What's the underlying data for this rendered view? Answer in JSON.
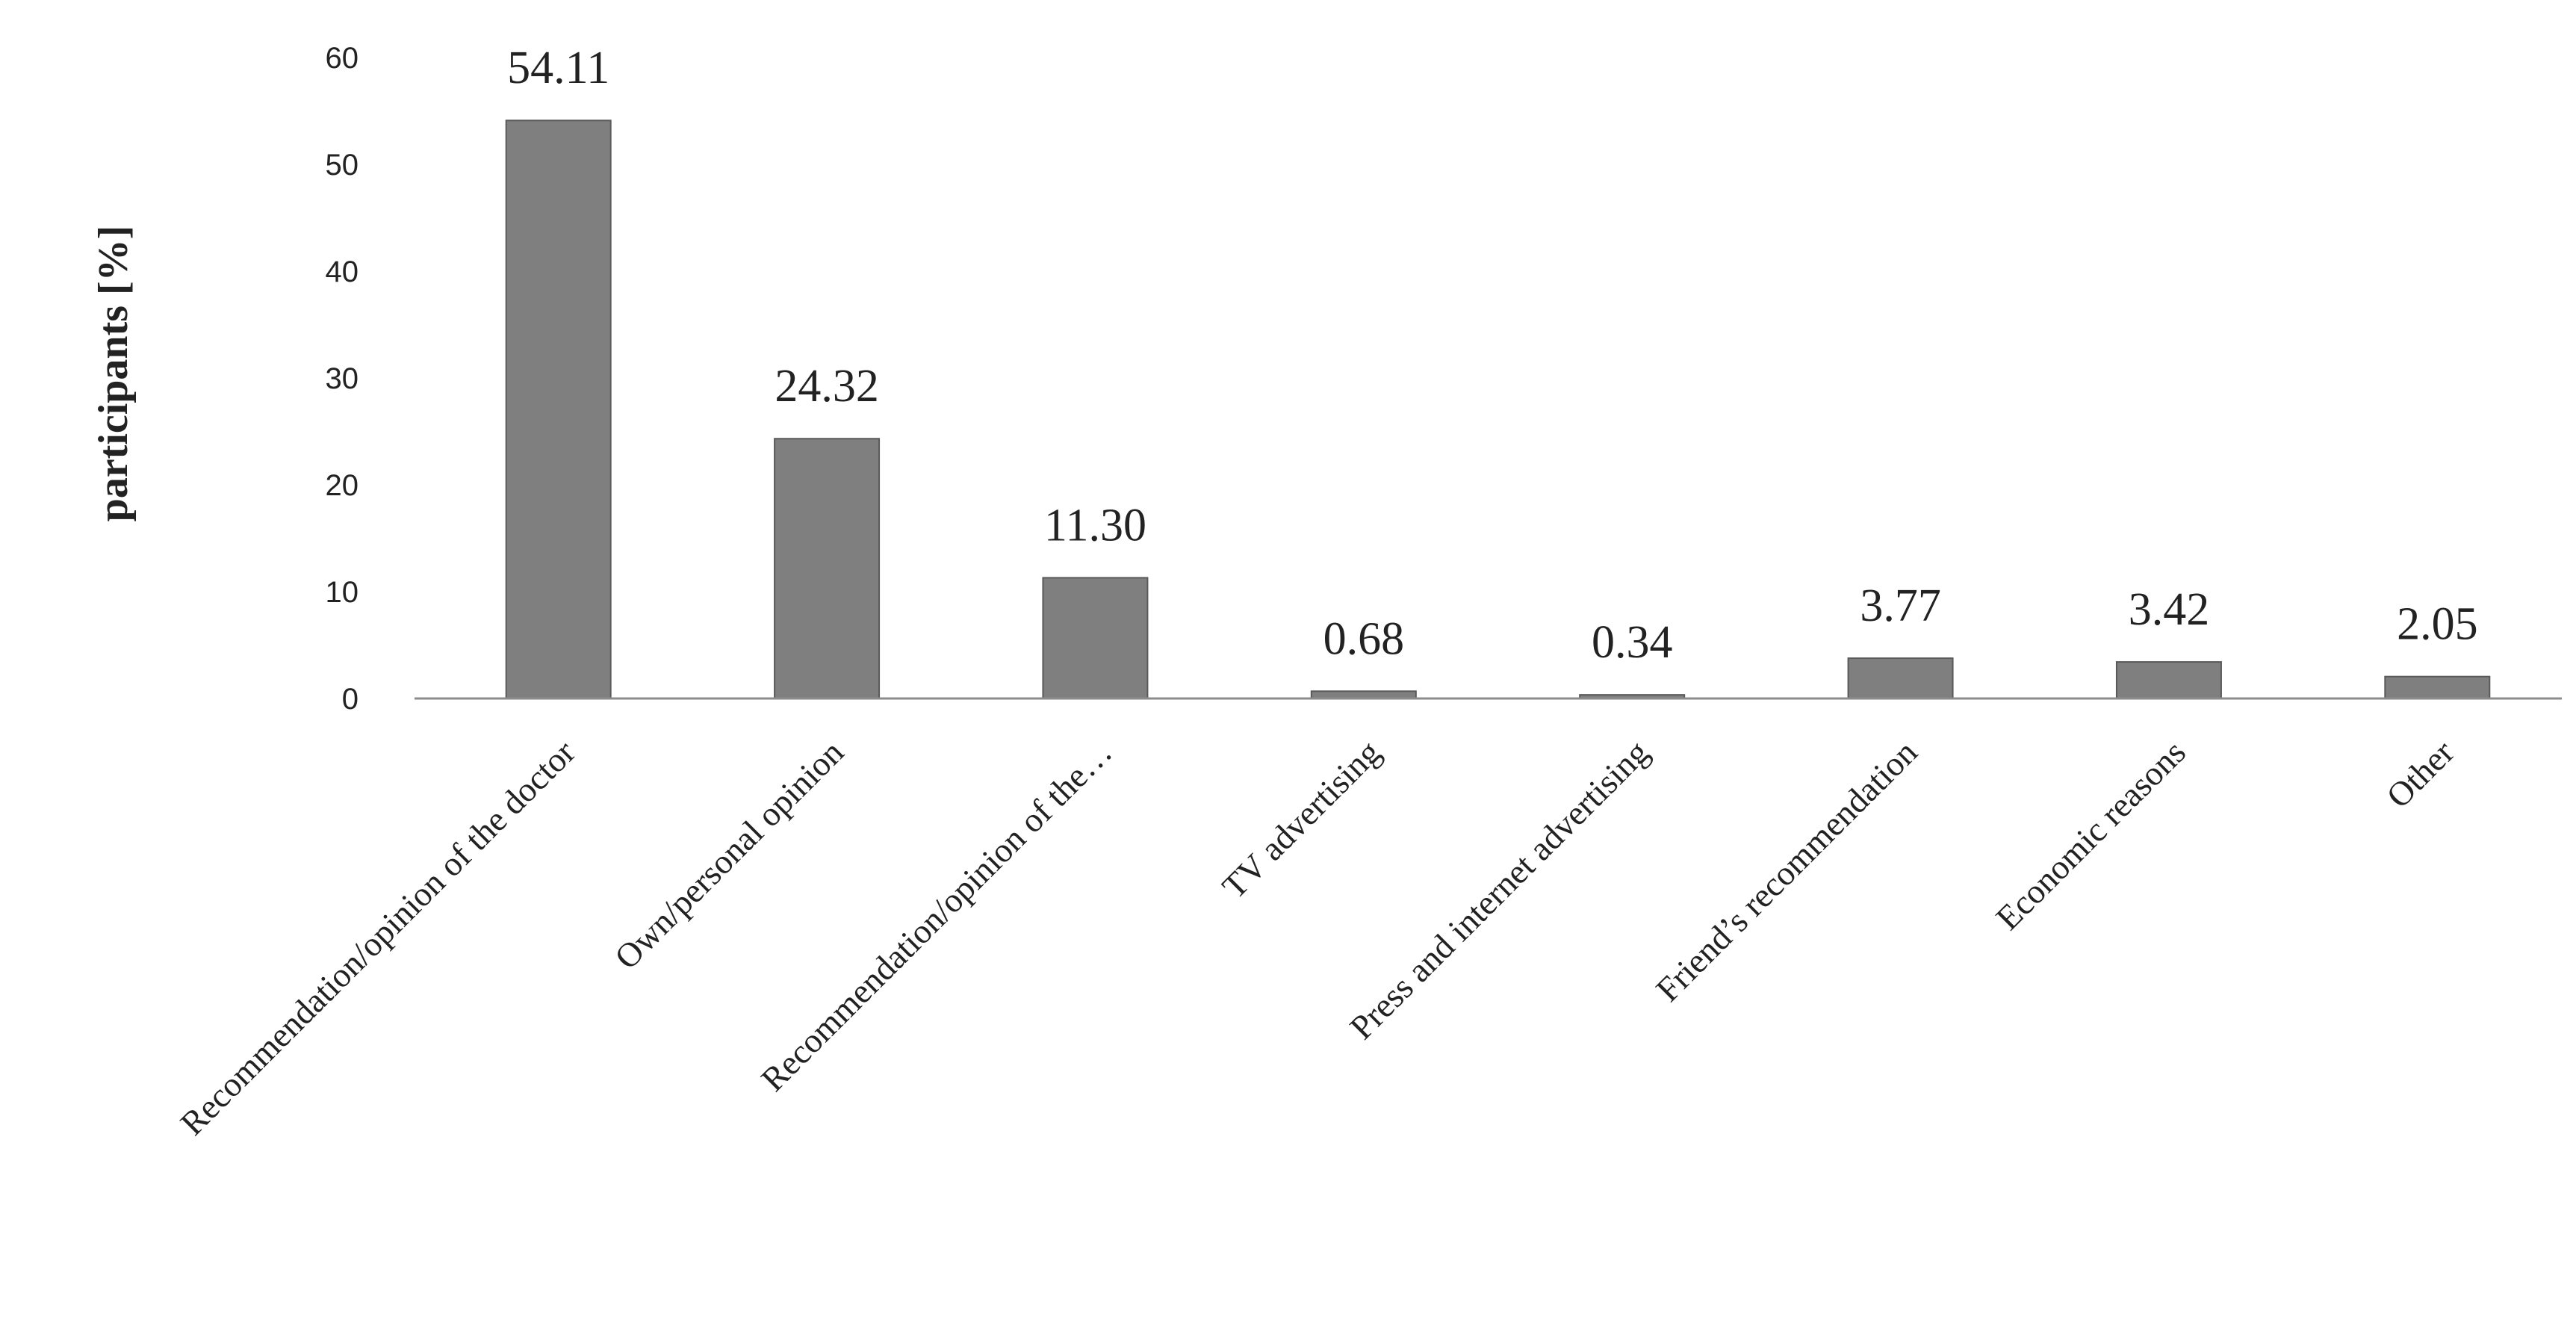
{
  "chart_data": {
    "type": "bar",
    "ylabel": "participants [%]",
    "xlabel": "",
    "ylim": [
      0,
      60
    ],
    "yticks": [
      0,
      10,
      20,
      30,
      40,
      50,
      60
    ],
    "grid": false,
    "categories": [
      "Recommendation/opinion of the doctor",
      "Own/personal opinion",
      "Recommendation/opinion of the…",
      "TV advertising",
      "Press and internet advertising",
      "Friend’s recommendation",
      "Economic reasons",
      "Other"
    ],
    "values": [
      54.11,
      24.32,
      11.3,
      0.68,
      0.34,
      3.77,
      3.42,
      2.05
    ],
    "data_labels": [
      "54.11",
      "24.32",
      "11.30",
      "0.68",
      "0.34",
      "3.77",
      "3.42",
      "2.05"
    ],
    "colors": {
      "bar": "#7f7f7f",
      "axis": "#8c8c8c"
    }
  }
}
